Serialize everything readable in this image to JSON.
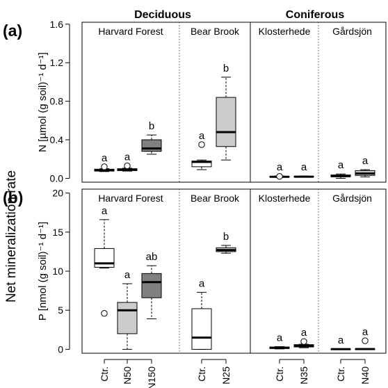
{
  "header": {
    "deciduous": "Deciduous",
    "coniferous": "Coniferous"
  },
  "y_title": "Net mineralization rate",
  "colors": {
    "ctr": "#ffffff",
    "mid": "#cccccc",
    "high": "#808080",
    "stroke": "#000000",
    "site_divider": "#555555"
  },
  "chart_data": [
    {
      "type": "box",
      "panel_label": "(a)",
      "ylabel": "N [µmol (g soil)⁻¹ d⁻¹]",
      "ylim": [
        -0.04,
        1.62
      ],
      "yticks": [
        0.0,
        0.4,
        0.8,
        1.2,
        1.6
      ],
      "ytick_labels": [
        "0.0",
        "0.4",
        "0.8",
        "1.2",
        "1.6"
      ],
      "sites": [
        "Harvard Forest",
        "Bear Brook",
        "Klosterhede",
        "Gårdsjön"
      ],
      "boxes": [
        {
          "site": "Harvard Forest",
          "treatment": "Ctr.",
          "whislo": 0.07,
          "q1": 0.075,
          "med": 0.085,
          "q3": 0.095,
          "whishi": 0.1,
          "outliers": [
            0.12
          ],
          "letter": "a",
          "fill": "ctr"
        },
        {
          "site": "Harvard Forest",
          "treatment": "N50",
          "whislo": 0.075,
          "q1": 0.08,
          "med": 0.09,
          "q3": 0.1,
          "whishi": 0.105,
          "outliers": [
            0.13
          ],
          "letter": "a",
          "fill": "mid"
        },
        {
          "site": "Harvard Forest",
          "treatment": "N150",
          "whislo": 0.25,
          "q1": 0.28,
          "med": 0.31,
          "q3": 0.4,
          "whishi": 0.45,
          "outliers": [],
          "letter": "b",
          "fill": "high"
        },
        {
          "site": "Bear Brook",
          "treatment": "Ctr.",
          "whislo": 0.09,
          "q1": 0.12,
          "med": 0.17,
          "q3": 0.18,
          "whishi": 0.19,
          "outliers": [
            0.35
          ],
          "letter": "a",
          "fill": "ctr"
        },
        {
          "site": "Bear Brook",
          "treatment": "N25",
          "whislo": 0.19,
          "q1": 0.33,
          "med": 0.48,
          "q3": 0.84,
          "whishi": 1.05,
          "outliers": [],
          "letter": "b",
          "fill": "mid"
        },
        {
          "site": "Klosterhede",
          "treatment": "Ctr.",
          "whislo": 0.01,
          "q1": 0.012,
          "med": 0.016,
          "q3": 0.02,
          "whishi": 0.025,
          "outliers": [
            0.02
          ],
          "letter": "a",
          "fill": "ctr"
        },
        {
          "site": "Klosterhede",
          "treatment": "N35",
          "whislo": 0.012,
          "q1": 0.014,
          "med": 0.017,
          "q3": 0.021,
          "whishi": 0.025,
          "outliers": [],
          "letter": "a",
          "fill": "mid"
        },
        {
          "site": "Gårdsjön",
          "treatment": "Ctr.",
          "whislo": 0.0,
          "q1": 0.015,
          "med": 0.025,
          "q3": 0.035,
          "whishi": 0.045,
          "outliers": [],
          "letter": "a",
          "fill": "ctr"
        },
        {
          "site": "Gårdsjön",
          "treatment": "N40",
          "whislo": 0.015,
          "q1": 0.03,
          "med": 0.05,
          "q3": 0.08,
          "whishi": 0.09,
          "outliers": [],
          "letter": "a",
          "fill": "mid"
        }
      ]
    },
    {
      "type": "box",
      "panel_label": "(b)",
      "ylabel": "P [nmol (g soil)⁻¹ d⁻¹]",
      "ylim": [
        -0.5,
        20.5
      ],
      "yticks": [
        0,
        5,
        10,
        15,
        20
      ],
      "ytick_labels": [
        "0",
        "5",
        "10",
        "15",
        "20"
      ],
      "sites": [
        "Harvard Forest",
        "Bear Brook",
        "Klosterhede",
        "Gårdsjön"
      ],
      "boxes": [
        {
          "site": "Harvard Forest",
          "treatment": "Ctr.",
          "whislo": 10.4,
          "q1": 10.5,
          "med": 11.0,
          "q3": 12.9,
          "whishi": 16.6,
          "outliers": [
            4.6
          ],
          "letter": "a",
          "fill": "ctr"
        },
        {
          "site": "Harvard Forest",
          "treatment": "N50",
          "whislo": 0.0,
          "q1": 2.0,
          "med": 5.0,
          "q3": 6.0,
          "whishi": 8.4,
          "outliers": [],
          "letter": "a",
          "fill": "mid"
        },
        {
          "site": "Harvard Forest",
          "treatment": "N150",
          "whislo": 3.9,
          "q1": 6.6,
          "med": 8.6,
          "q3": 9.7,
          "whishi": 10.7,
          "outliers": [],
          "letter": "ab",
          "fill": "high"
        },
        {
          "site": "Bear Brook",
          "treatment": "Ctr.",
          "whislo": 0.0,
          "q1": 0.0,
          "med": 1.5,
          "q3": 5.2,
          "whishi": 7.3,
          "outliers": [],
          "letter": "a",
          "fill": "ctr"
        },
        {
          "site": "Bear Brook",
          "treatment": "N25",
          "whislo": 12.3,
          "q1": 12.5,
          "med": 12.7,
          "q3": 13.0,
          "whishi": 13.3,
          "outliers": [],
          "letter": "b",
          "fill": "mid"
        },
        {
          "site": "Klosterhede",
          "treatment": "Ctr.",
          "whislo": 0.05,
          "q1": 0.1,
          "med": 0.2,
          "q3": 0.3,
          "whishi": 0.35,
          "outliers": [],
          "letter": "a",
          "fill": "ctr"
        },
        {
          "site": "Klosterhede",
          "treatment": "N35",
          "whislo": 0.2,
          "q1": 0.3,
          "med": 0.45,
          "q3": 0.6,
          "whishi": 0.65,
          "outliers": [
            1.0
          ],
          "letter": "a",
          "fill": "mid"
        },
        {
          "site": "Gårdsjön",
          "treatment": "Ctr.",
          "whislo": 0.0,
          "q1": 0.0,
          "med": 0.02,
          "q3": 0.04,
          "whishi": 0.05,
          "outliers": [],
          "letter": "a",
          "fill": "ctr"
        },
        {
          "site": "Gårdsjön",
          "treatment": "N40",
          "whislo": 0.0,
          "q1": 0.0,
          "med": 0.03,
          "q3": 0.05,
          "whishi": 0.06,
          "outliers": [
            1.1
          ],
          "letter": "a",
          "fill": "mid"
        }
      ]
    }
  ],
  "x_labels": [
    "Ctr.",
    "N50",
    "N150",
    "Ctr.",
    "N25",
    "Ctr.",
    "N35",
    "Ctr.",
    "N40"
  ]
}
